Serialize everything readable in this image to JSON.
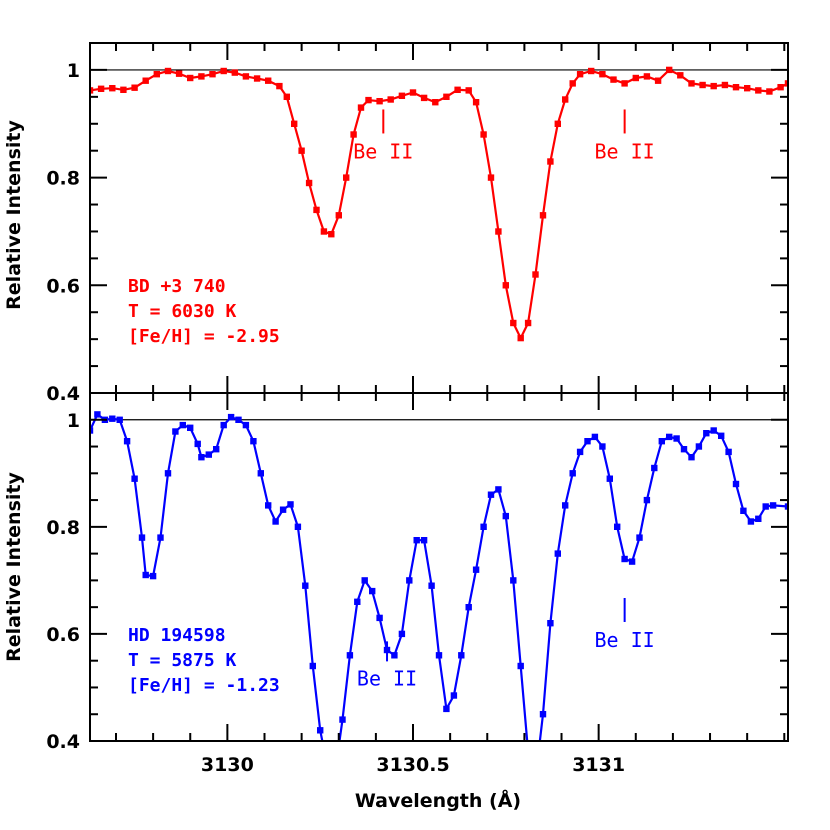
{
  "colors": {
    "top": "#ff0000",
    "bottom": "#0000ff",
    "frame": "#000000"
  },
  "xlabel": "Wavelength (Å)",
  "chart_data": [
    {
      "type": "line",
      "panel": "top",
      "ylabel": "Relative Intensity",
      "xlim": [
        3129.63,
        3131.51
      ],
      "ylim": [
        0.4,
        1.05
      ],
      "x_ticks": [
        3130,
        3130.5,
        3131
      ],
      "x_tick_labels": [
        "",
        "",
        ""
      ],
      "y_ticks": [
        0.4,
        0.6,
        0.8,
        1.0
      ],
      "y_tick_labels": [
        "0.4",
        "0.6",
        "0.8",
        "1"
      ],
      "reference_line": 1.0,
      "info_lines": [
        "BD +3 740",
        "T = 6030 K",
        "[Fe/H] = -2.95"
      ],
      "annotations": [
        {
          "text": "Be II",
          "x": 3130.42,
          "y": 0.83
        },
        {
          "text": "Be II",
          "x": 3131.07,
          "y": 0.83
        }
      ],
      "series": [
        {
          "points": [
            [
              3129.63,
              0.962
            ],
            [
              3129.66,
              0.965
            ],
            [
              3129.69,
              0.966
            ],
            [
              3129.72,
              0.963
            ],
            [
              3129.75,
              0.967
            ],
            [
              3129.78,
              0.98
            ],
            [
              3129.81,
              0.992
            ],
            [
              3129.84,
              0.998
            ],
            [
              3129.87,
              0.993
            ],
            [
              3129.9,
              0.985
            ],
            [
              3129.93,
              0.988
            ],
            [
              3129.96,
              0.992
            ],
            [
              3129.99,
              0.998
            ],
            [
              3130.02,
              0.995
            ],
            [
              3130.05,
              0.988
            ],
            [
              3130.08,
              0.984
            ],
            [
              3130.11,
              0.98
            ],
            [
              3130.14,
              0.97
            ],
            [
              3130.16,
              0.95
            ],
            [
              3130.18,
              0.9
            ],
            [
              3130.2,
              0.85
            ],
            [
              3130.22,
              0.79
            ],
            [
              3130.24,
              0.74
            ],
            [
              3130.26,
              0.7
            ],
            [
              3130.28,
              0.695
            ],
            [
              3130.3,
              0.73
            ],
            [
              3130.32,
              0.8
            ],
            [
              3130.34,
              0.88
            ],
            [
              3130.36,
              0.93
            ],
            [
              3130.38,
              0.944
            ],
            [
              3130.41,
              0.942
            ],
            [
              3130.44,
              0.945
            ],
            [
              3130.47,
              0.952
            ],
            [
              3130.5,
              0.958
            ],
            [
              3130.53,
              0.948
            ],
            [
              3130.56,
              0.94
            ],
            [
              3130.59,
              0.95
            ],
            [
              3130.62,
              0.963
            ],
            [
              3130.65,
              0.962
            ],
            [
              3130.67,
              0.94
            ],
            [
              3130.69,
              0.88
            ],
            [
              3130.71,
              0.8
            ],
            [
              3130.73,
              0.7
            ],
            [
              3130.75,
              0.6
            ],
            [
              3130.77,
              0.53
            ],
            [
              3130.79,
              0.502
            ],
            [
              3130.81,
              0.53
            ],
            [
              3130.83,
              0.62
            ],
            [
              3130.85,
              0.73
            ],
            [
              3130.87,
              0.83
            ],
            [
              3130.89,
              0.9
            ],
            [
              3130.91,
              0.945
            ],
            [
              3130.93,
              0.975
            ],
            [
              3130.95,
              0.992
            ],
            [
              3130.98,
              0.998
            ],
            [
              3131.01,
              0.992
            ],
            [
              3131.04,
              0.982
            ],
            [
              3131.07,
              0.975
            ],
            [
              3131.1,
              0.985
            ],
            [
              3131.13,
              0.988
            ],
            [
              3131.16,
              0.98
            ],
            [
              3131.19,
              1.0
            ],
            [
              3131.22,
              0.99
            ],
            [
              3131.25,
              0.975
            ],
            [
              3131.28,
              0.972
            ],
            [
              3131.31,
              0.97
            ],
            [
              3131.34,
              0.972
            ],
            [
              3131.37,
              0.968
            ],
            [
              3131.4,
              0.966
            ],
            [
              3131.43,
              0.962
            ],
            [
              3131.46,
              0.96
            ],
            [
              3131.49,
              0.968
            ],
            [
              3131.51,
              0.975
            ]
          ]
        }
      ]
    },
    {
      "type": "line",
      "panel": "bottom",
      "ylabel": "Relative Intensity",
      "xlim": [
        3129.63,
        3131.51
      ],
      "ylim": [
        0.4,
        1.05
      ],
      "x_ticks": [
        3130,
        3130.5,
        3131
      ],
      "x_tick_labels": [
        "3130",
        "3130.5",
        "3131"
      ],
      "y_ticks": [
        0.4,
        0.6,
        0.8,
        1.0
      ],
      "y_tick_labels": [
        "0.4",
        "0.6",
        "0.8",
        "1"
      ],
      "reference_line": 1.0,
      "info_lines": [
        "HD 194598",
        "T = 5875 K",
        "[Fe/H] = -1.23"
      ],
      "annotations": [
        {
          "text": "Be II",
          "x": 3130.43,
          "y": 0.545
        },
        {
          "text": "Be II",
          "x": 3131.07,
          "y": 0.57
        }
      ],
      "series": [
        {
          "points": [
            [
              3129.63,
              0.98
            ],
            [
              3129.65,
              1.01
            ],
            [
              3129.67,
              1.0
            ],
            [
              3129.69,
              1.002
            ],
            [
              3129.71,
              1.0
            ],
            [
              3129.73,
              0.96
            ],
            [
              3129.75,
              0.89
            ],
            [
              3129.77,
              0.78
            ],
            [
              3129.78,
              0.71
            ],
            [
              3129.8,
              0.708
            ],
            [
              3129.82,
              0.78
            ],
            [
              3129.84,
              0.9
            ],
            [
              3129.86,
              0.978
            ],
            [
              3129.88,
              0.99
            ],
            [
              3129.9,
              0.985
            ],
            [
              3129.92,
              0.955
            ],
            [
              3129.93,
              0.93
            ],
            [
              3129.95,
              0.935
            ],
            [
              3129.97,
              0.945
            ],
            [
              3129.99,
              0.99
            ],
            [
              3130.01,
              1.005
            ],
            [
              3130.03,
              1.0
            ],
            [
              3130.05,
              0.99
            ],
            [
              3130.07,
              0.96
            ],
            [
              3130.09,
              0.9
            ],
            [
              3130.11,
              0.84
            ],
            [
              3130.13,
              0.81
            ],
            [
              3130.15,
              0.832
            ],
            [
              3130.17,
              0.842
            ],
            [
              3130.19,
              0.8
            ],
            [
              3130.21,
              0.69
            ],
            [
              3130.23,
              0.54
            ],
            [
              3130.25,
              0.42
            ],
            [
              3130.27,
              0.35
            ],
            [
              3130.29,
              0.34
            ],
            [
              3130.31,
              0.44
            ],
            [
              3130.33,
              0.56
            ],
            [
              3130.35,
              0.66
            ],
            [
              3130.37,
              0.7
            ],
            [
              3130.39,
              0.68
            ],
            [
              3130.41,
              0.63
            ],
            [
              3130.43,
              0.57
            ],
            [
              3130.45,
              0.56
            ],
            [
              3130.47,
              0.6
            ],
            [
              3130.49,
              0.7
            ],
            [
              3130.51,
              0.775
            ],
            [
              3130.53,
              0.775
            ],
            [
              3130.55,
              0.69
            ],
            [
              3130.57,
              0.56
            ],
            [
              3130.59,
              0.46
            ],
            [
              3130.61,
              0.485
            ],
            [
              3130.63,
              0.56
            ],
            [
              3130.65,
              0.65
            ],
            [
              3130.67,
              0.72
            ],
            [
              3130.69,
              0.8
            ],
            [
              3130.71,
              0.86
            ],
            [
              3130.73,
              0.87
            ],
            [
              3130.75,
              0.82
            ],
            [
              3130.77,
              0.7
            ],
            [
              3130.79,
              0.54
            ],
            [
              3130.81,
              0.38
            ],
            [
              3130.83,
              0.33
            ],
            [
              3130.85,
              0.45
            ],
            [
              3130.87,
              0.62
            ],
            [
              3130.89,
              0.75
            ],
            [
              3130.91,
              0.84
            ],
            [
              3130.93,
              0.9
            ],
            [
              3130.95,
              0.94
            ],
            [
              3130.97,
              0.96
            ],
            [
              3130.99,
              0.968
            ],
            [
              3131.01,
              0.95
            ],
            [
              3131.03,
              0.89
            ],
            [
              3131.05,
              0.8
            ],
            [
              3131.07,
              0.74
            ],
            [
              3131.09,
              0.735
            ],
            [
              3131.11,
              0.78
            ],
            [
              3131.13,
              0.85
            ],
            [
              3131.15,
              0.91
            ],
            [
              3131.17,
              0.96
            ],
            [
              3131.19,
              0.968
            ],
            [
              3131.21,
              0.965
            ],
            [
              3131.23,
              0.945
            ],
            [
              3131.25,
              0.93
            ],
            [
              3131.27,
              0.95
            ],
            [
              3131.29,
              0.975
            ],
            [
              3131.31,
              0.98
            ],
            [
              3131.33,
              0.97
            ],
            [
              3131.35,
              0.94
            ],
            [
              3131.37,
              0.88
            ],
            [
              3131.39,
              0.83
            ],
            [
              3131.41,
              0.81
            ],
            [
              3131.43,
              0.815
            ],
            [
              3131.45,
              0.838
            ],
            [
              3131.47,
              0.84
            ],
            [
              3131.51,
              0.838
            ]
          ]
        }
      ]
    }
  ]
}
